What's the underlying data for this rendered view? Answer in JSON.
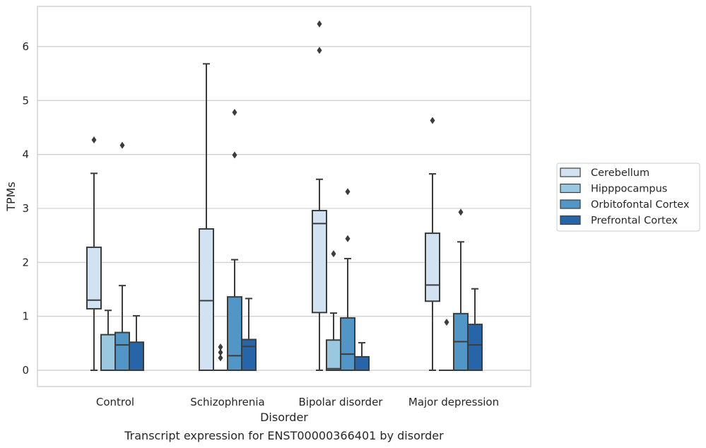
{
  "chart_data": {
    "type": "boxplot",
    "title": "",
    "caption": "Transcript expression for ENST00000366401 by disorder",
    "xlabel": "Disorder",
    "ylabel": "TPMs",
    "ylim": [
      -0.3,
      7.5
    ],
    "yticks": [
      0,
      1,
      2,
      3,
      4,
      5,
      6
    ],
    "grid": true,
    "legend_position": "right",
    "categories": [
      "Control",
      "Schizophrenia",
      "Bipolar disorder",
      "Major depression"
    ],
    "series": [
      {
        "name": "Cerebellum",
        "color": "#d1e2f2",
        "boxes": [
          {
            "whislo": 0,
            "q1": 1.14,
            "med": 1.3,
            "q3": 2.28,
            "whishi": 3.65,
            "fliers": [
              4.27
            ]
          },
          {
            "whislo": 0,
            "q1": 0,
            "med": 1.29,
            "q3": 2.62,
            "whishi": 5.68,
            "fliers": []
          },
          {
            "whislo": 0,
            "q1": 1.07,
            "med": 2.72,
            "q3": 2.96,
            "whishi": 3.54,
            "fliers": [
              5.93,
              6.42
            ]
          },
          {
            "whislo": 0,
            "q1": 1.28,
            "med": 1.58,
            "q3": 2.54,
            "whishi": 3.64,
            "fliers": [
              4.63
            ]
          }
        ]
      },
      {
        "name": "Hipppocampus",
        "color": "#9ac8e0",
        "boxes": [
          {
            "whislo": 0,
            "q1": 0,
            "med": 0,
            "q3": 0.66,
            "whishi": 1.11,
            "fliers": []
          },
          {
            "whislo": 0,
            "q1": 0,
            "med": 0,
            "q3": 0,
            "whishi": 0,
            "fliers": [
              0.23,
              0.33,
              0.43
            ]
          },
          {
            "whislo": 0,
            "q1": 0,
            "med": 0.03,
            "q3": 0.56,
            "whishi": 1.06,
            "fliers": [
              2.16
            ]
          },
          {
            "whislo": 0,
            "q1": 0,
            "med": 0,
            "q3": 0,
            "whishi": 0,
            "fliers": [
              0.89
            ]
          }
        ]
      },
      {
        "name": "Orbitofontal Cortex",
        "color": "#5296c8",
        "boxes": [
          {
            "whislo": 0,
            "q1": 0,
            "med": 0.47,
            "q3": 0.7,
            "whishi": 1.57,
            "fliers": [
              4.17
            ]
          },
          {
            "whislo": 0,
            "q1": 0,
            "med": 0.27,
            "q3": 1.36,
            "whishi": 2.05,
            "fliers": [
              3.99,
              4.78
            ]
          },
          {
            "whislo": 0,
            "q1": 0,
            "med": 0.3,
            "q3": 0.97,
            "whishi": 2.07,
            "fliers": [
              2.44,
              3.31
            ]
          },
          {
            "whislo": 0,
            "q1": 0,
            "med": 0.53,
            "q3": 1.05,
            "whishi": 2.38,
            "fliers": [
              2.93
            ]
          }
        ]
      },
      {
        "name": "Prefrontal Cortex",
        "color": "#2666a8",
        "boxes": [
          {
            "whislo": 0,
            "q1": 0,
            "med": 0,
            "q3": 0.52,
            "whishi": 1.01,
            "fliers": []
          },
          {
            "whislo": 0,
            "q1": 0,
            "med": 0.44,
            "q3": 0.57,
            "whishi": 1.33,
            "fliers": []
          },
          {
            "whislo": 0,
            "q1": 0,
            "med": 0,
            "q3": 0.25,
            "whishi": 0.51,
            "fliers": []
          },
          {
            "whislo": 0,
            "q1": 0,
            "med": 0.47,
            "q3": 0.85,
            "whishi": 1.51,
            "fliers": []
          }
        ]
      }
    ]
  }
}
